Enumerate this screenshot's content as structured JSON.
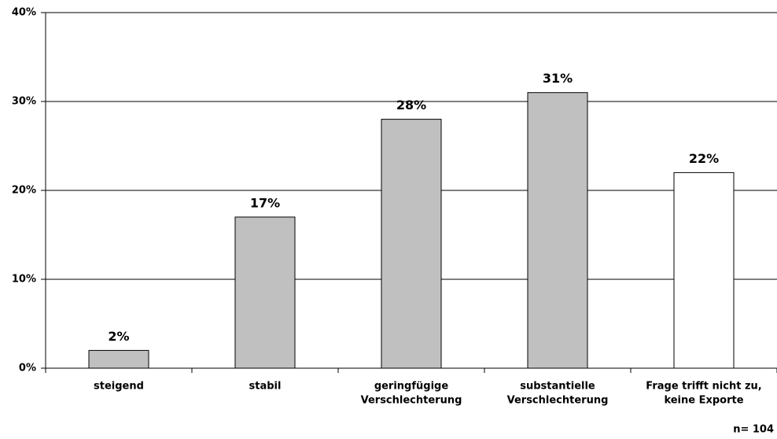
{
  "chart_data": {
    "type": "bar",
    "categories": [
      [
        "steigend"
      ],
      [
        "stabil"
      ],
      [
        "geringfügige",
        "Verschlechterung"
      ],
      [
        "substantielle",
        "Verschlechterung"
      ],
      [
        "Frage trifft nicht zu,",
        "keine Exporte"
      ]
    ],
    "values": [
      2,
      17,
      28,
      31,
      22
    ],
    "value_labels": [
      "2%",
      "17%",
      "28%",
      "31%",
      "22%"
    ],
    "colors": [
      "#c0c0c0",
      "#c0c0c0",
      "#c0c0c0",
      "#c0c0c0",
      "#ffffff"
    ],
    "ylim": [
      0,
      40
    ],
    "yticks": [
      {
        "value": 0,
        "label": "0%"
      },
      {
        "value": 10,
        "label": "10%"
      },
      {
        "value": 20,
        "label": "20%"
      },
      {
        "value": 30,
        "label": "30%"
      },
      {
        "value": 40,
        "label": "40%"
      }
    ],
    "grid": true,
    "annotation": "n= 104"
  }
}
